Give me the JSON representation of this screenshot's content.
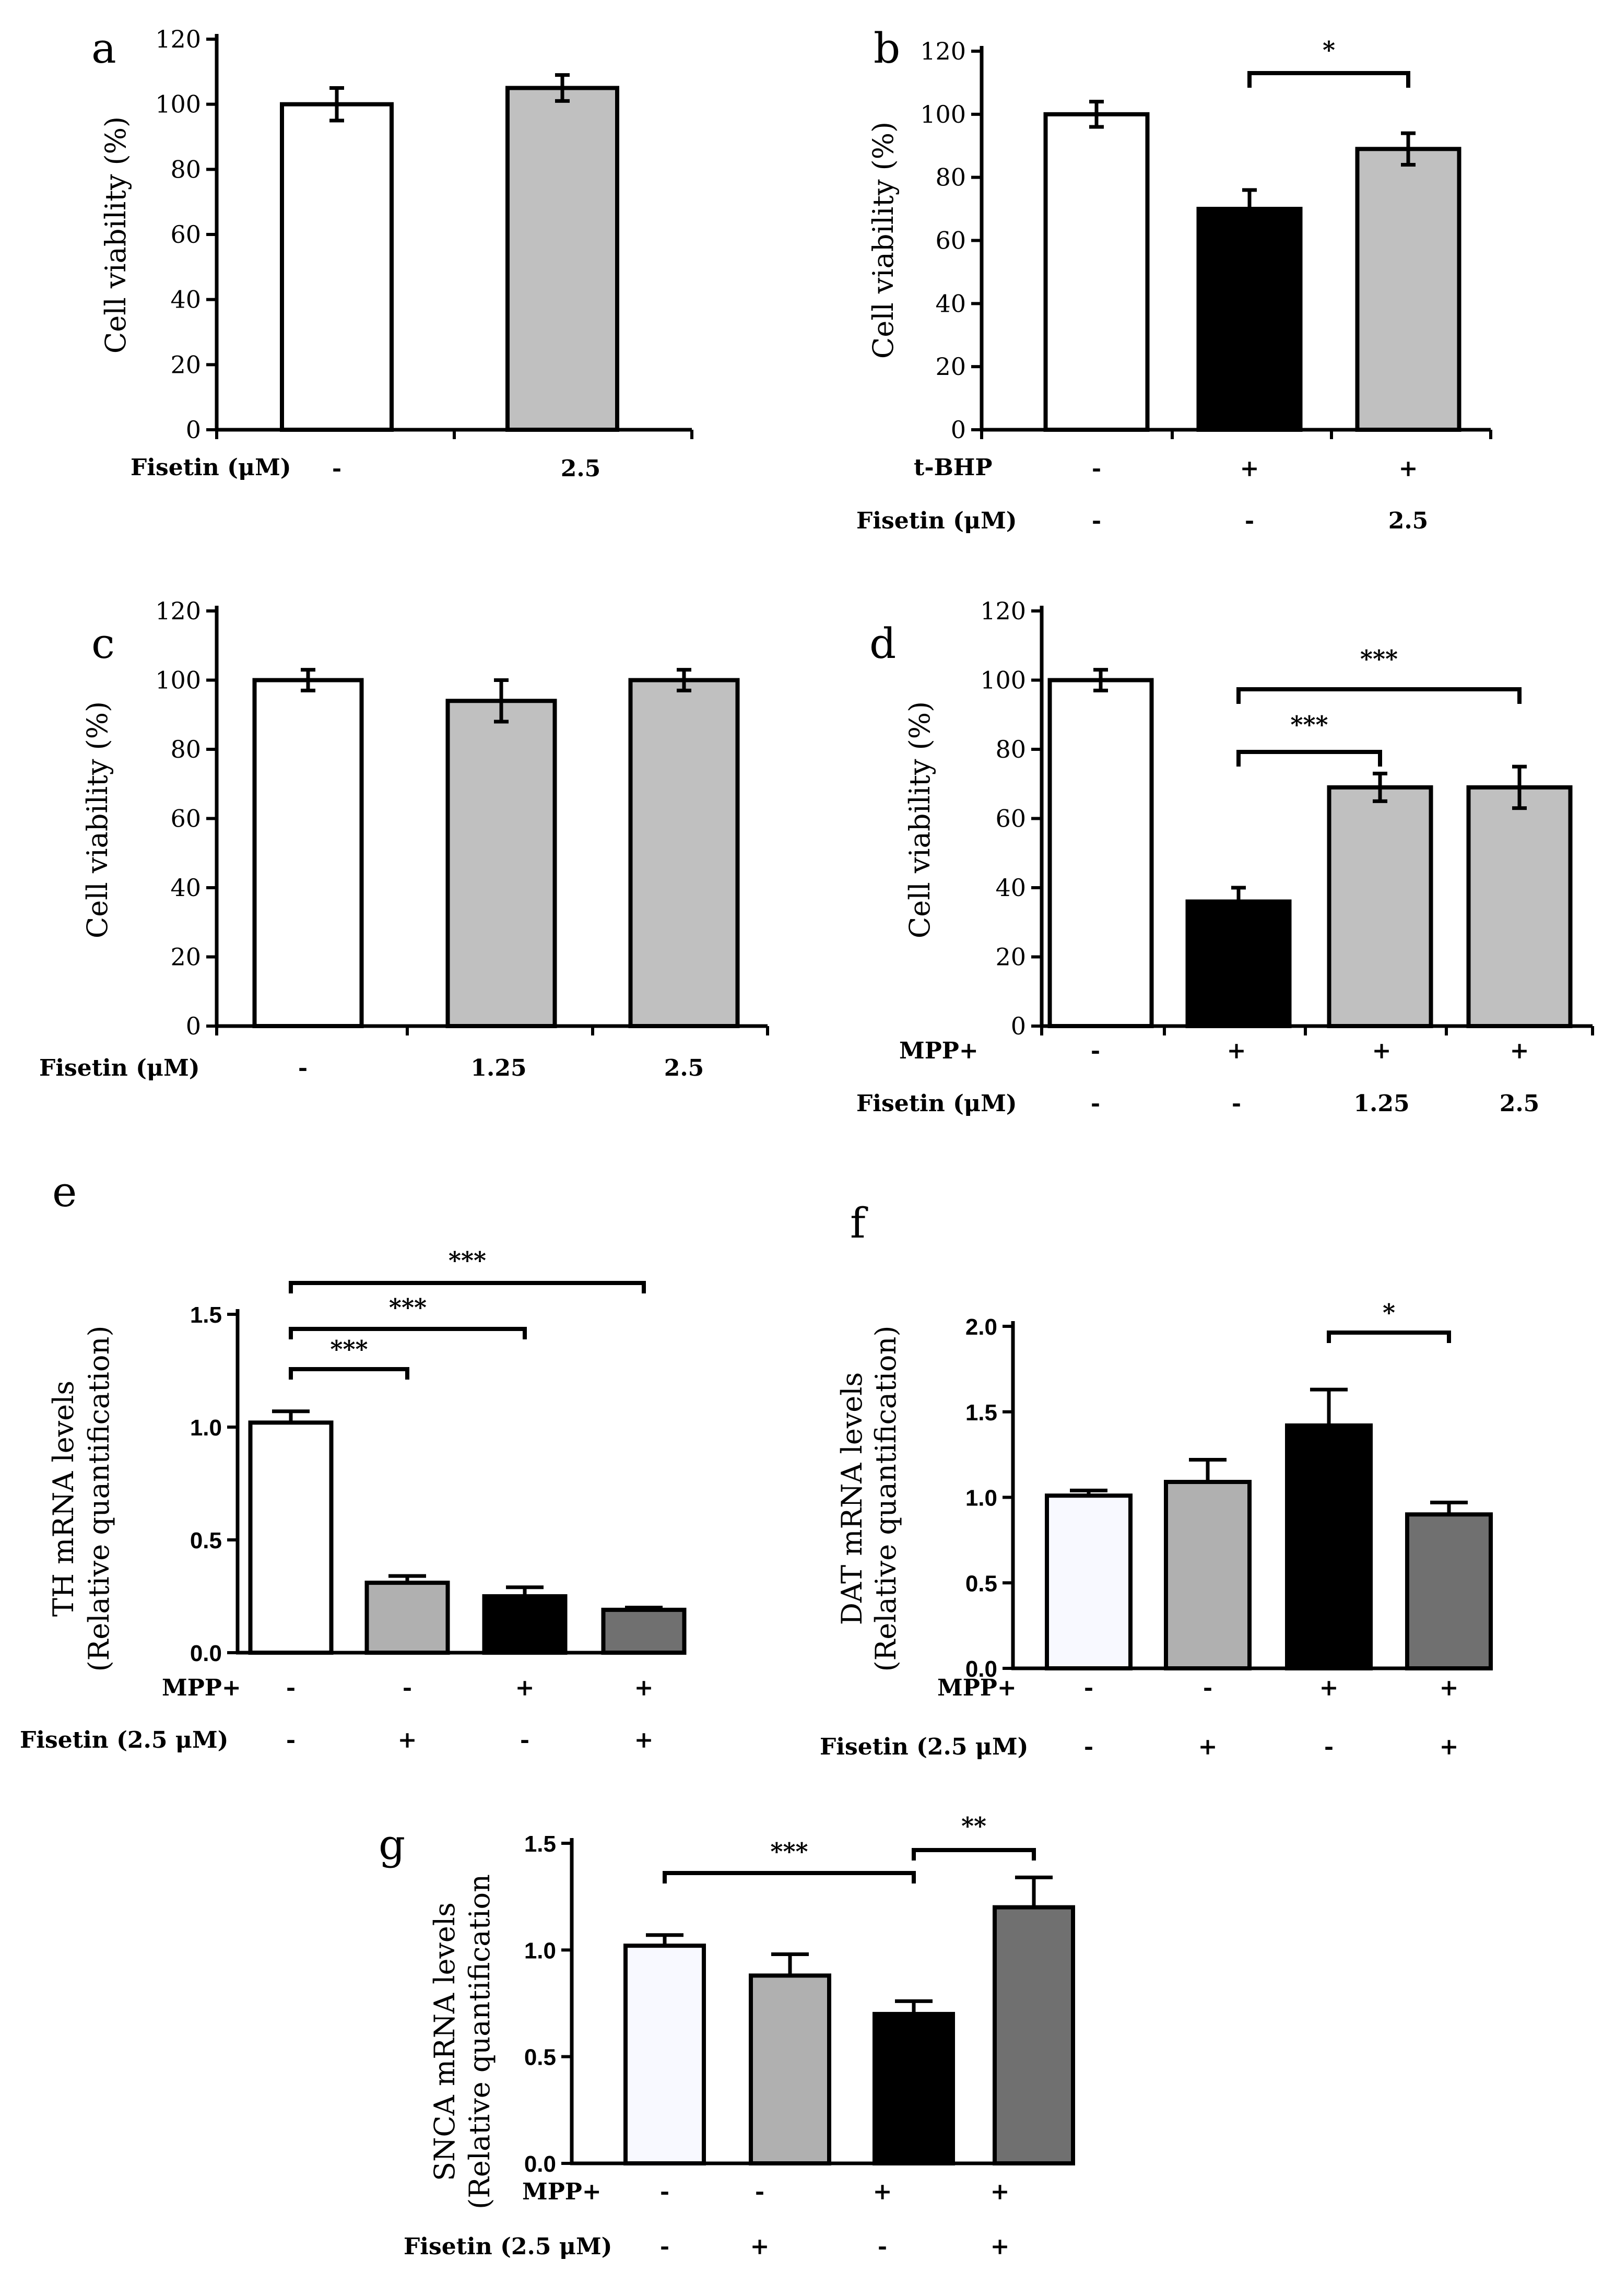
{
  "figure": {
    "panels": [
      "a",
      "b",
      "c",
      "d",
      "e",
      "f",
      "g"
    ]
  },
  "chart_data": [
    {
      "panel": "a",
      "type": "bar",
      "title": "",
      "ylabel": "Cell viability (%)",
      "ylim": [
        0,
        120
      ],
      "yticks": [
        "0",
        "20",
        "40",
        "60",
        "80",
        "100",
        "120"
      ],
      "values": [
        100,
        105
      ],
      "errors": [
        5,
        4
      ],
      "fills": [
        "#ffffff",
        "#c0c0c0"
      ],
      "rows": [
        {
          "label": "Fisetin (μM)",
          "values": [
            "-",
            "2.5"
          ]
        }
      ],
      "significance": []
    },
    {
      "panel": "b",
      "type": "bar",
      "title": "",
      "ylabel": "Cell viability (%)",
      "ylim": [
        0,
        120
      ],
      "yticks": [
        "0",
        "20",
        "40",
        "60",
        "80",
        "100",
        "120"
      ],
      "values": [
        100,
        70,
        89
      ],
      "errors": [
        4,
        6,
        5
      ],
      "fills": [
        "#ffffff",
        "#000000",
        "#c0c0c0"
      ],
      "rows": [
        {
          "label": "t-BHP",
          "values": [
            "-",
            "+",
            "+"
          ]
        },
        {
          "label": "Fisetin (μM)",
          "values": [
            "-",
            "-",
            "2.5"
          ]
        }
      ],
      "significance": [
        {
          "from": 1,
          "to": 2,
          "text": "*"
        }
      ]
    },
    {
      "panel": "c",
      "type": "bar",
      "title": "",
      "ylabel": "Cell viability (%)",
      "ylim": [
        0,
        120
      ],
      "yticks": [
        "0",
        "20",
        "40",
        "60",
        "80",
        "100",
        "120"
      ],
      "values": [
        100,
        94,
        100
      ],
      "errors": [
        3,
        6,
        3
      ],
      "fills": [
        "#ffffff",
        "#c0c0c0",
        "#c0c0c0"
      ],
      "rows": [
        {
          "label": "Fisetin (μM)",
          "values": [
            "-",
            "1.25",
            "2.5"
          ]
        }
      ],
      "significance": []
    },
    {
      "panel": "d",
      "type": "bar",
      "title": "",
      "ylabel": "Cell viability (%)",
      "ylim": [
        0,
        120
      ],
      "yticks": [
        "0",
        "20",
        "40",
        "60",
        "80",
        "100",
        "120"
      ],
      "values": [
        100,
        36,
        69,
        69
      ],
      "errors": [
        3,
        4,
        4,
        6
      ],
      "fills": [
        "#ffffff",
        "#000000",
        "#c0c0c0",
        "#c0c0c0"
      ],
      "rows": [
        {
          "label": "MPP+",
          "values": [
            "-",
            "+",
            "+",
            "+"
          ]
        },
        {
          "label": "Fisetin (μM)",
          "values": [
            "-",
            "-",
            "1.25",
            "2.5"
          ]
        }
      ],
      "significance": [
        {
          "from": 1,
          "to": 2,
          "text": "***"
        },
        {
          "from": 1,
          "to": 3,
          "text": "***"
        }
      ]
    },
    {
      "panel": "e",
      "type": "bar",
      "title": "",
      "ylabel": "TH mRNA levels",
      "ylabel2": "(Relative quantification)",
      "ylim": [
        0,
        1.5
      ],
      "yticks": [
        "0.0",
        "0.5",
        "1.0",
        "1.5"
      ],
      "values": [
        1.02,
        0.31,
        0.25,
        0.19
      ],
      "errors": [
        0.05,
        0.03,
        0.04,
        0.01
      ],
      "fills": [
        "#ffffff",
        "#b0b0b0",
        "#000000",
        "#707070"
      ],
      "rows": [
        {
          "label": "MPP+",
          "values": [
            "-",
            "-",
            "+",
            "+"
          ]
        },
        {
          "label": "Fisetin (2.5 μM)",
          "values": [
            "-",
            "+",
            "-",
            "+"
          ]
        }
      ],
      "significance": [
        {
          "from": 0,
          "to": 1,
          "text": "***"
        },
        {
          "from": 0,
          "to": 2,
          "text": "***"
        },
        {
          "from": 0,
          "to": 3,
          "text": "***"
        }
      ]
    },
    {
      "panel": "f",
      "type": "bar",
      "title": "",
      "ylabel": "DAT mRNA levels",
      "ylabel2": "(Relative quantification)",
      "ylim": [
        0,
        2.0
      ],
      "yticks": [
        "0.0",
        "0.5",
        "1.0",
        "1.5",
        "2.0"
      ],
      "values": [
        1.01,
        1.09,
        1.42,
        0.9
      ],
      "errors": [
        0.03,
        0.13,
        0.21,
        0.07
      ],
      "fills": [
        "#f8f9ff",
        "#b0b0b0",
        "#000000",
        "#707070"
      ],
      "rows": [
        {
          "label": "MPP+",
          "values": [
            "-",
            "-",
            "+",
            "+"
          ]
        },
        {
          "label": "Fisetin (2.5 μM)",
          "values": [
            "-",
            "+",
            "-",
            "+"
          ]
        }
      ],
      "significance": [
        {
          "from": 2,
          "to": 3,
          "text": "*"
        }
      ]
    },
    {
      "panel": "g",
      "type": "bar",
      "title": "",
      "ylabel": "SNCA mRNA levels",
      "ylabel2": "(Relative quantification",
      "ylim": [
        0,
        1.5
      ],
      "yticks": [
        "0.0",
        "0.5",
        "1.0",
        "1.5"
      ],
      "values": [
        1.02,
        0.88,
        0.7,
        1.2
      ],
      "errors": [
        0.05,
        0.1,
        0.06,
        0.14
      ],
      "fills": [
        "#f8f9ff",
        "#b0b0b0",
        "#000000",
        "#707070"
      ],
      "rows": [
        {
          "label": "MPP+",
          "values": [
            "-",
            "-",
            "+",
            "+"
          ]
        },
        {
          "label": "Fisetin (2.5 μM)",
          "values": [
            "-",
            "+",
            "-",
            "+"
          ]
        }
      ],
      "significance": [
        {
          "from": 0,
          "to": 2,
          "text": "***"
        },
        {
          "from": 2,
          "to": 3,
          "text": "**"
        }
      ]
    }
  ]
}
